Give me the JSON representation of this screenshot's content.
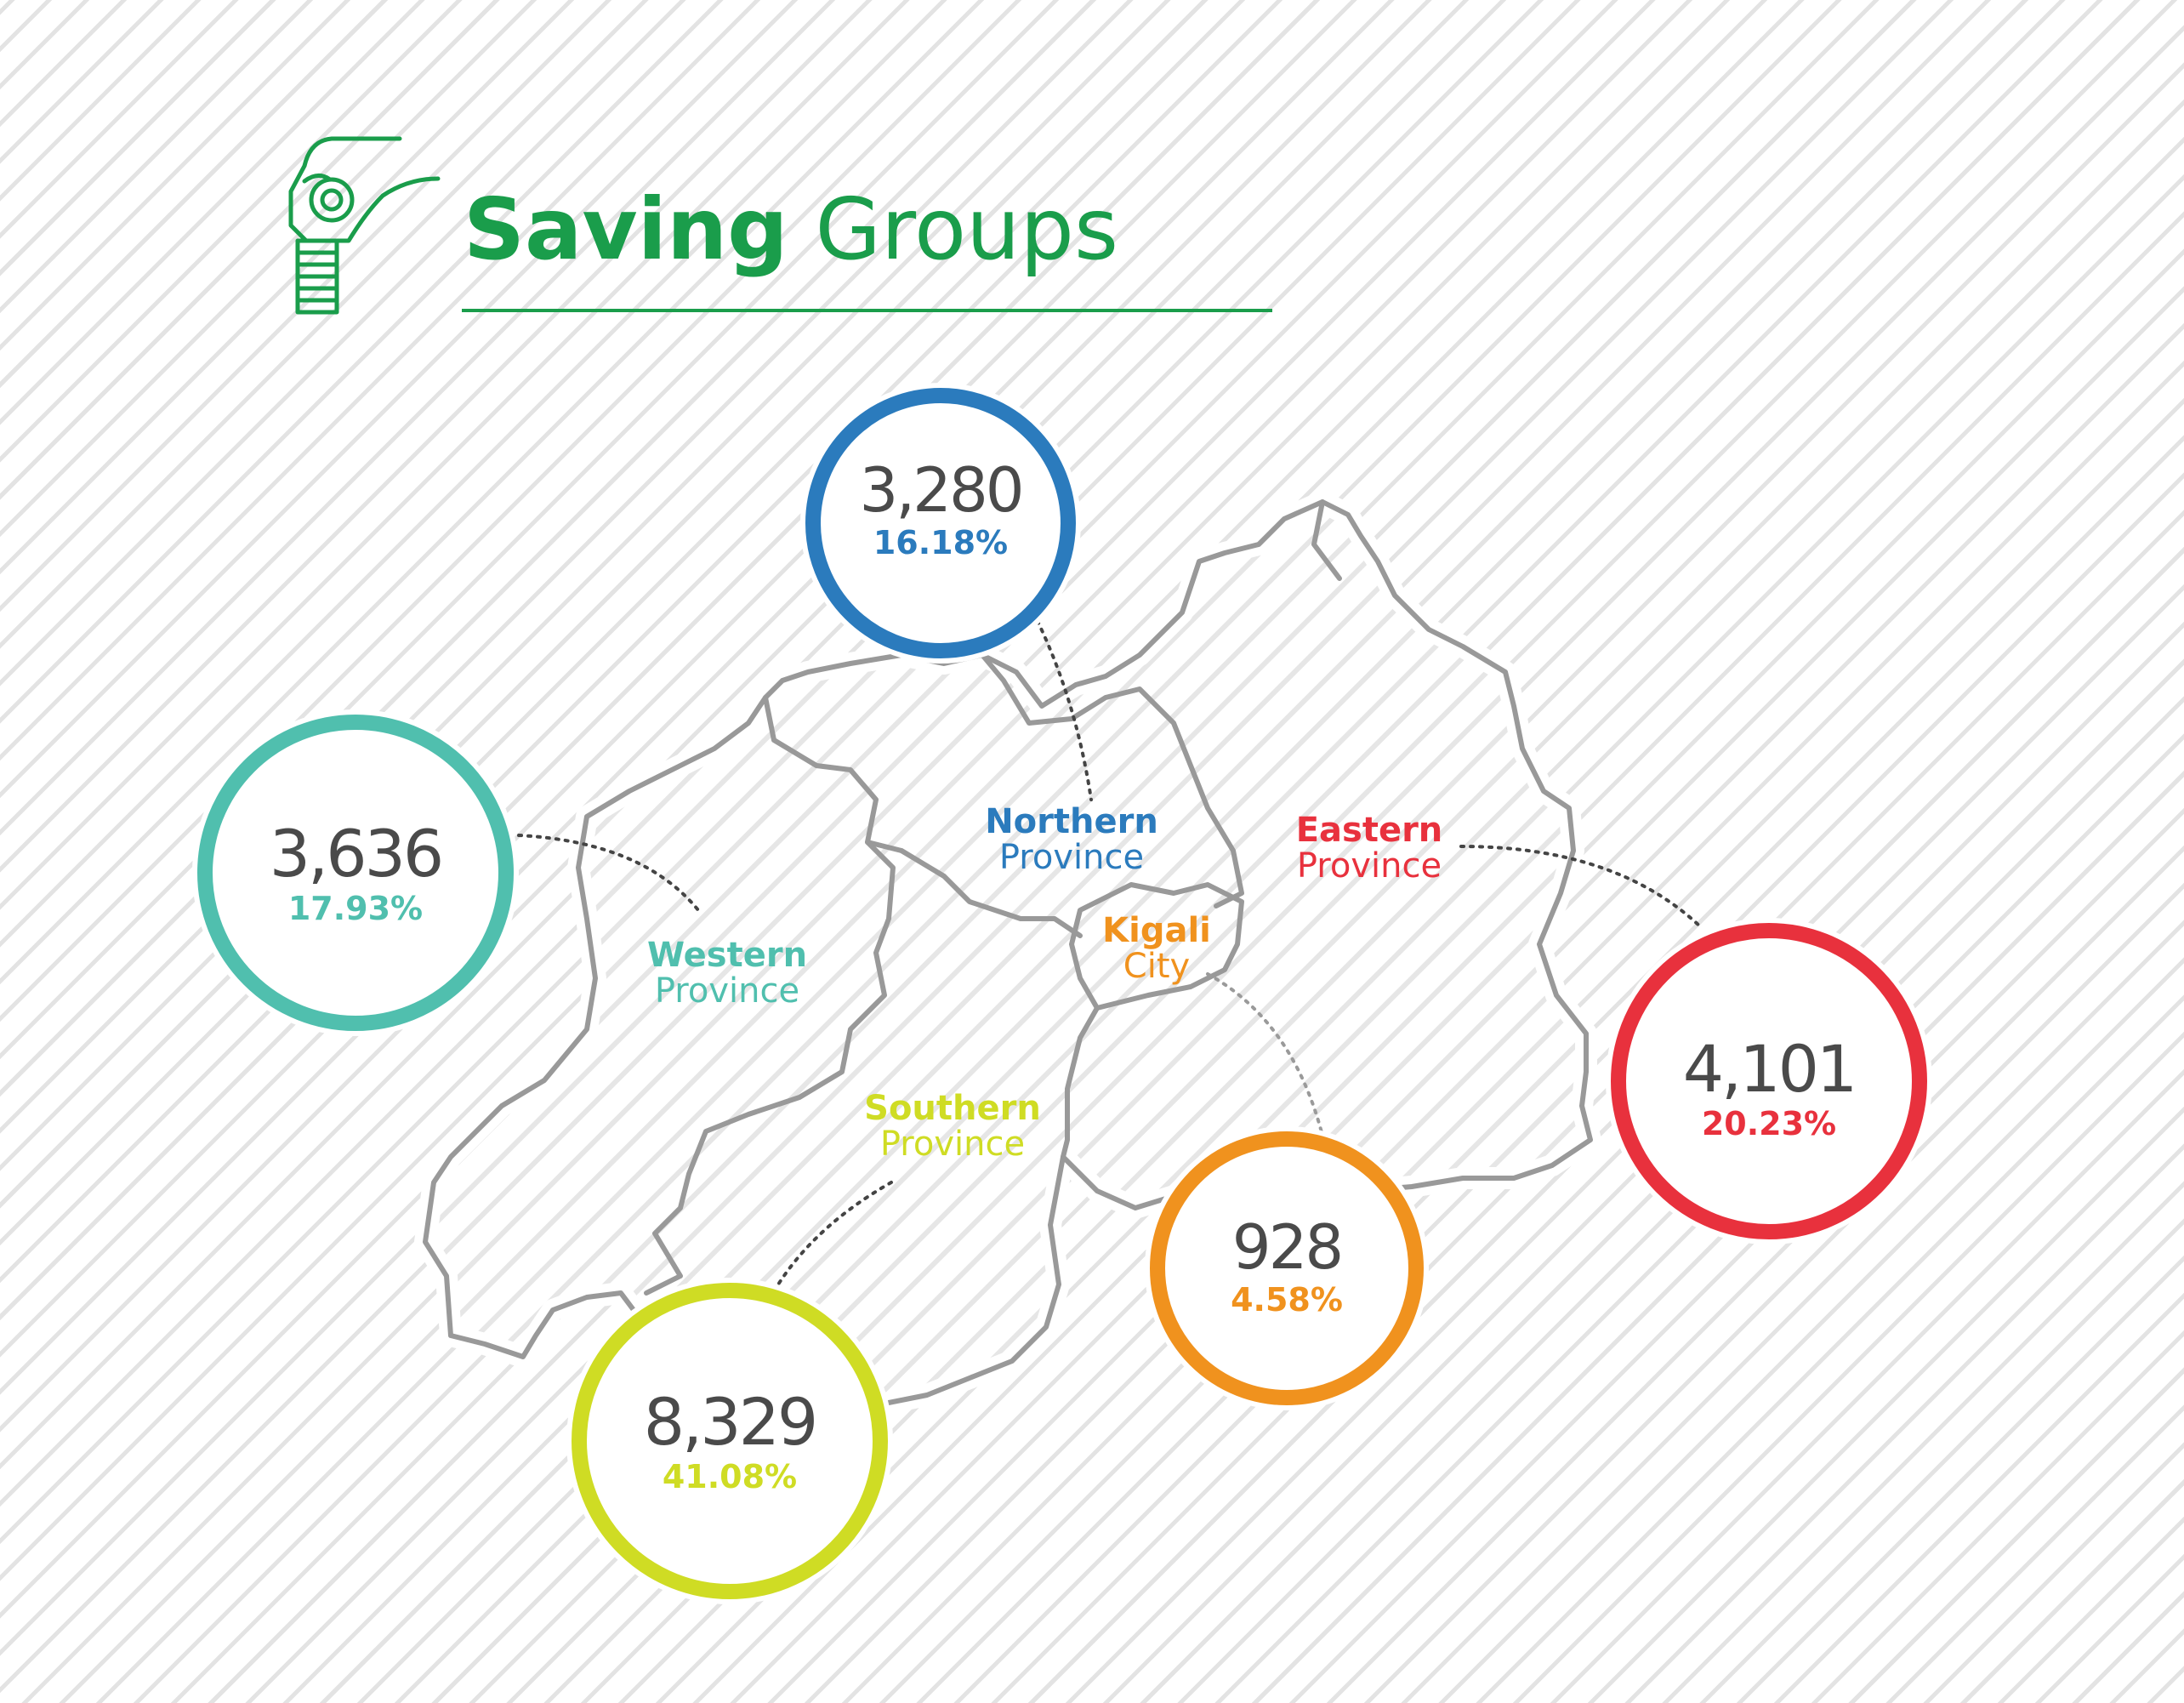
{
  "title": {
    "bold": "Saving",
    "light": "Groups",
    "icon": "hand-coin-stack-icon",
    "color": "#1a9d4b"
  },
  "regions": {
    "northern": {
      "name": "Northern",
      "kind": "Province",
      "count": "3,280",
      "percent": "16.18%",
      "color": "#2b7bbd"
    },
    "western": {
      "name": "Western",
      "kind": "Province",
      "count": "3,636",
      "percent": "17.93%",
      "color": "#50bfae"
    },
    "eastern": {
      "name": "Eastern",
      "kind": "Province",
      "count": "4,101",
      "percent": "20.23%",
      "color": "#e8313d"
    },
    "kigali": {
      "name": "Kigali",
      "kind": "City",
      "count": "928",
      "percent": "4.58%",
      "color": "#f0921e"
    },
    "southern": {
      "name": "Southern",
      "kind": "Province",
      "count": "8,329",
      "percent": "41.08%",
      "color": "#cfdc24"
    }
  }
}
